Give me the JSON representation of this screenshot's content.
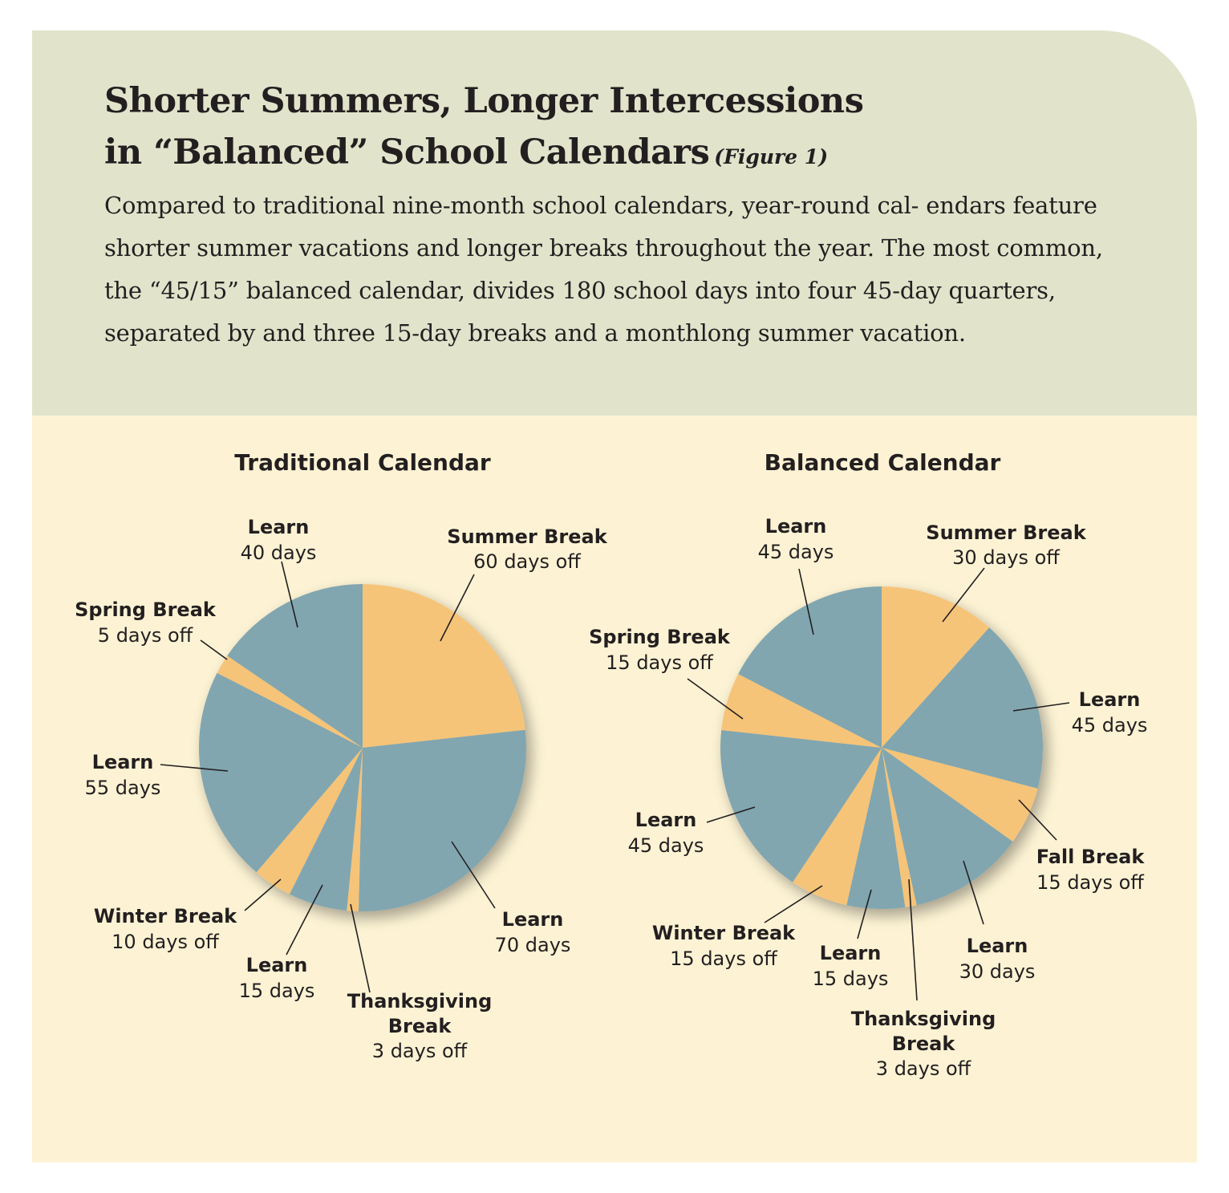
{
  "header": {
    "title_line1": "Shorter Summers, Longer Intercessions",
    "title_line2": "in “Balanced” School Calendars",
    "figure_label": "(Figure 1)",
    "caption": "Compared to traditional nine-month school calendars, year-round cal- endars feature shorter summer vacations and longer breaks throughout the year. The most common, the “45/15” balanced calendar, divides 180 school days into four 45-day quarters, separated by and three 15-day breaks and a monthlong summer vacation."
  },
  "colors": {
    "learn": "#81a6b0",
    "break": "#f5c479",
    "header_bg": "#e1e4cb",
    "body_bg": "#fdf3d4"
  },
  "chart_data": [
    {
      "type": "pie",
      "title": "Traditional Calendar",
      "slices": [
        {
          "name": "Summer Break",
          "value_label": "60 days off",
          "value": 60,
          "kind": "break"
        },
        {
          "name": "Learn",
          "value_label": "70 days",
          "value": 70,
          "kind": "learn"
        },
        {
          "name": "Thanksgiving Break",
          "value_label": "3 days off",
          "value": 3,
          "kind": "break"
        },
        {
          "name": "Learn",
          "value_label": "15 days",
          "value": 15,
          "kind": "learn"
        },
        {
          "name": "Winter Break",
          "value_label": "10 days off",
          "value": 10,
          "kind": "break"
        },
        {
          "name": "Learn",
          "value_label": "55 days",
          "value": 55,
          "kind": "learn"
        },
        {
          "name": "Spring Break",
          "value_label": "5 days off",
          "value": 5,
          "kind": "break"
        },
        {
          "name": "Learn",
          "value_label": "40 days",
          "value": 40,
          "kind": "learn"
        }
      ]
    },
    {
      "type": "pie",
      "title": "Balanced Calendar",
      "slices": [
        {
          "name": "Summer Break",
          "value_label": "30 days off",
          "value": 30,
          "kind": "break"
        },
        {
          "name": "Learn",
          "value_label": "45 days",
          "value": 45,
          "kind": "learn"
        },
        {
          "name": "Fall Break",
          "value_label": "15 days off",
          "value": 15,
          "kind": "break"
        },
        {
          "name": "Learn",
          "value_label": "30 days",
          "value": 30,
          "kind": "learn"
        },
        {
          "name": "Thanksgiving Break",
          "value_label": "3 days off",
          "value": 3,
          "kind": "break"
        },
        {
          "name": "Learn",
          "value_label": "15 days",
          "value": 15,
          "kind": "learn"
        },
        {
          "name": "Winter Break",
          "value_label": "15 days off",
          "value": 15,
          "kind": "break"
        },
        {
          "name": "Learn",
          "value_label": "45 days",
          "value": 45,
          "kind": "learn"
        },
        {
          "name": "Spring Break",
          "value_label": "15 days off",
          "value": 15,
          "kind": "break"
        },
        {
          "name": "Learn",
          "value_label": "45 days",
          "value": 45,
          "kind": "learn"
        }
      ]
    }
  ]
}
